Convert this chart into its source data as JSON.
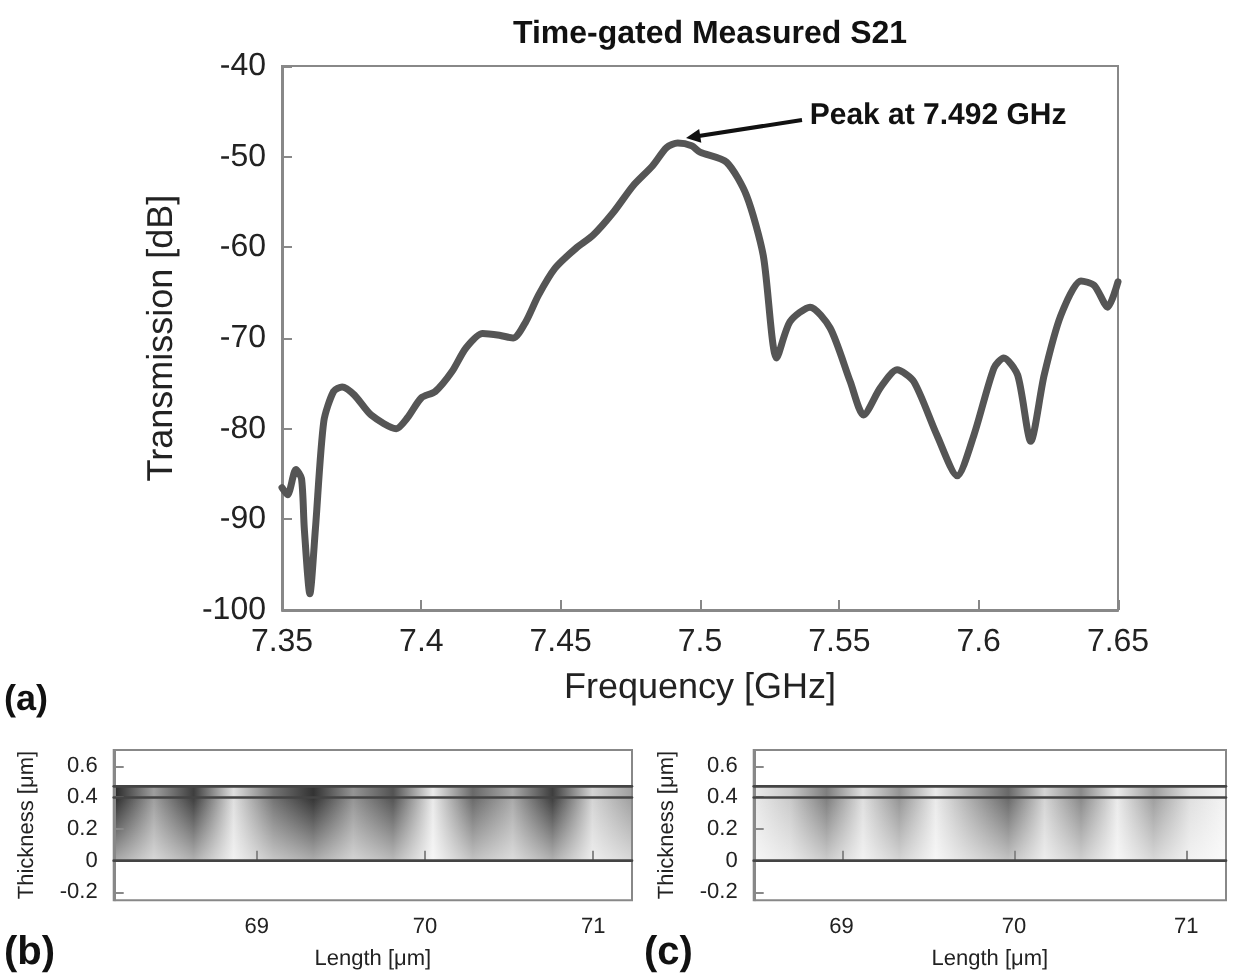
{
  "chart_data": [
    {
      "type": "line",
      "title": "Time-gated Measured S21",
      "xlabel": "Frequency [GHz]",
      "ylabel": "Transmission [dB]",
      "xlim": [
        7.35,
        7.65
      ],
      "xticks": [
        7.35,
        7.4,
        7.45,
        7.5,
        7.55,
        7.6,
        7.65
      ],
      "ylim": [
        -100,
        -40
      ],
      "yticks": [
        -100,
        -90,
        -80,
        -70,
        -60,
        -50,
        -40
      ],
      "grid": false,
      "marker": "none",
      "line_style": "solid",
      "series": [
        {
          "color": "#555555",
          "x": [
            7.35,
            7.352,
            7.355,
            7.357,
            7.358,
            7.36,
            7.362,
            7.365,
            7.3685,
            7.3716,
            7.376,
            7.382,
            7.391,
            7.395,
            7.4,
            7.405,
            7.411,
            7.416,
            7.422,
            7.428,
            7.433,
            7.4375,
            7.442,
            7.448,
            7.4555,
            7.4615,
            7.469,
            7.476,
            7.483,
            7.488,
            7.492,
            7.497,
            7.5,
            7.5095,
            7.5167,
            7.5227,
            7.5275,
            7.5323,
            7.5395,
            7.5467,
            7.5539,
            7.5587,
            7.5647,
            7.5707,
            7.5767,
            7.585,
            7.5923,
            7.5983,
            7.6055,
            7.609,
            7.614,
            7.6187,
            7.6235,
            7.6295,
            7.6367,
            7.6415,
            7.6463,
            7.65
          ],
          "values": [
            -86.5,
            -87.3,
            -84.5,
            -85.5,
            -91,
            -98.2,
            -91,
            -79.2,
            -75.9,
            -75.4,
            -76.3,
            -78.5,
            -80,
            -78.8,
            -76.6,
            -75.9,
            -73.7,
            -71.1,
            -69.5,
            -69.7,
            -70,
            -68.2,
            -65.3,
            -62.3,
            -60.1,
            -58.7,
            -56.1,
            -53.2,
            -51,
            -49,
            -48.5,
            -48.8,
            -49.5,
            -50.6,
            -54.3,
            -60.9,
            -72.2,
            -68.2,
            -66.6,
            -68.9,
            -74.8,
            -78.5,
            -75.5,
            -73.5,
            -74.8,
            -80.7,
            -85.2,
            -80.7,
            -73.3,
            -72.2,
            -74.1,
            -81.4,
            -74.1,
            -67.5,
            -63.7,
            -64.2,
            -66.6,
            -63.8
          ]
        }
      ],
      "annotations": [
        {
          "text": "Peak at 7.492 GHz",
          "x": 7.492,
          "y": -48.5
        },
        "(a)"
      ]
    },
    {
      "type": "line",
      "xlabel": "Length [μm]",
      "ylabel": "Thickness [μm]",
      "xlim": [
        68.15,
        71.23
      ],
      "xticks": [
        69,
        70,
        71
      ],
      "ylim": [
        -0.25,
        0.7
      ],
      "yticks": [
        -0.2,
        0,
        0.2,
        0.4,
        0.6
      ],
      "marker": "none",
      "line_style": "solid",
      "x": [
        68.15,
        71.23
      ],
      "series": [
        {
          "color": "#444444",
          "values": [
            0.47,
            0.47
          ]
        },
        {
          "color": "#444444",
          "values": [
            0.4,
            0.4
          ]
        },
        {
          "color": "#444444",
          "values": [
            0,
            0
          ]
        }
      ],
      "annotations": [
        "(b)"
      ]
    },
    {
      "type": "line",
      "xlabel": "Length [μm]",
      "ylabel": "Thickness [μm]",
      "xlim": [
        68.49,
        71.23
      ],
      "xticks": [
        69,
        70,
        71
      ],
      "ylim": [
        -0.25,
        0.7
      ],
      "yticks": [
        -0.2,
        0,
        0.2,
        0.4,
        0.6
      ],
      "marker": "none",
      "line_style": "solid",
      "x": [
        68.49,
        71.23
      ],
      "series": [
        {
          "color": "#444444",
          "values": [
            0.47,
            0.47
          ]
        },
        {
          "color": "#444444",
          "values": [
            0.4,
            0.4
          ]
        },
        {
          "color": "#444444",
          "values": [
            0,
            0
          ]
        }
      ],
      "annotations": [
        "(c)"
      ]
    }
  ]
}
